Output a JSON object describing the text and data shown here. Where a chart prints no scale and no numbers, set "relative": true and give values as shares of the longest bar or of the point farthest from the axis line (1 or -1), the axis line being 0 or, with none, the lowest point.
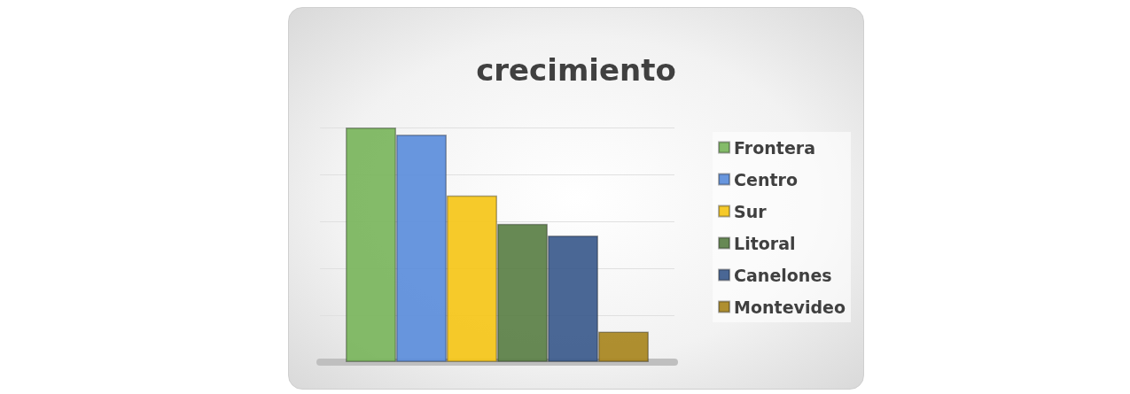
{
  "chart_data": {
    "type": "bar",
    "title": "crecimiento",
    "categories": [
      null
    ],
    "relative": true,
    "grid": "y",
    "legend": "right",
    "series": [
      {
        "name": "Frontera",
        "color": "#7ab55c",
        "values": [
          1
        ]
      },
      {
        "name": "Centro",
        "color": "#5b8ddb",
        "values": [
          0.97
        ]
      },
      {
        "name": "Sur",
        "color": "#f5c518",
        "values": [
          0.71
        ]
      },
      {
        "name": "Litoral",
        "color": "#5a7f45",
        "values": [
          0.59
        ]
      },
      {
        "name": "Canelones",
        "color": "#3b5a8c",
        "values": [
          0.54
        ]
      },
      {
        "name": "Montevideo",
        "color": "#a8861e",
        "values": [
          0.13
        ]
      }
    ]
  }
}
